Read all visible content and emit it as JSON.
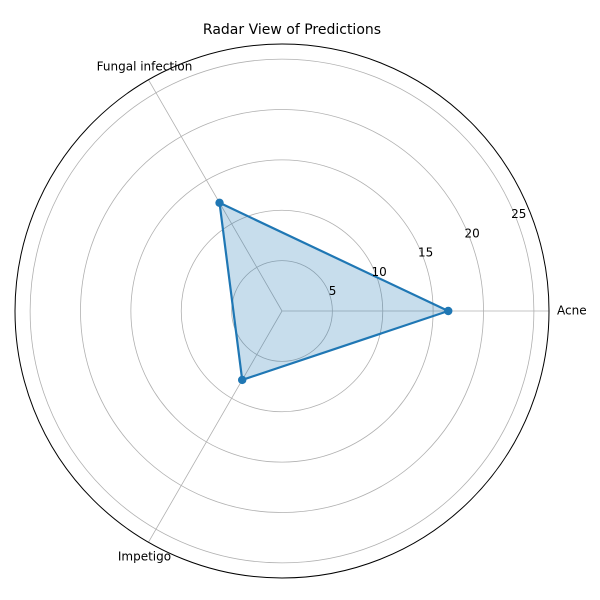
{
  "chart_data": {
    "type": "radar",
    "title": "Radar View of Predictions",
    "categories": [
      "Acne",
      "Fungal infection",
      "Impetigo"
    ],
    "series": [
      {
        "values": [
          16.5,
          12.4,
          7.9
        ],
        "color": "#1f77b4",
        "fill_color": "#1f77b4"
      }
    ],
    "rlim": [
      0,
      26.5
    ],
    "r_ticks": [
      5,
      10,
      15,
      20,
      25
    ],
    "r_tick_labels": [
      "5",
      "10",
      "15",
      "20",
      "25"
    ],
    "grid": true
  }
}
